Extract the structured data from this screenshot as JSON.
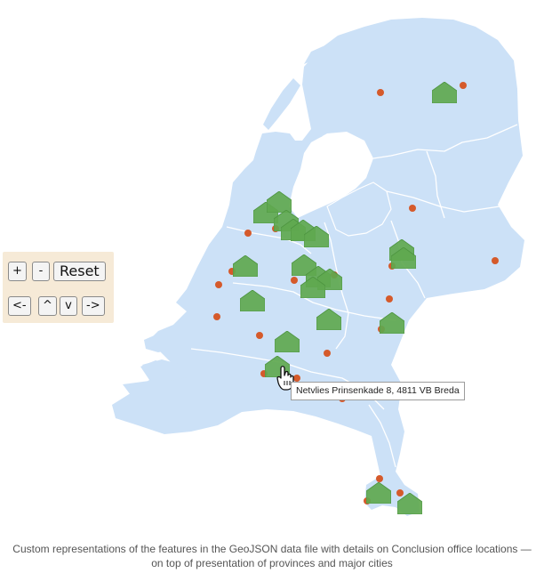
{
  "controls": {
    "zoom_in": "+",
    "zoom_out": "-",
    "reset": "Reset",
    "pan_left": "<-",
    "pan_up": "^",
    "pan_down": "v",
    "pan_right": "->"
  },
  "tooltip": {
    "text": "Netvlies Prinsenkade 8, 4811 VB Breda"
  },
  "caption": {
    "line1": "Custom representations of the features in the GeoJSON data file with details on Conclusion office locations —",
    "line2": "on top of presentation of provinces and major cities"
  },
  "colors": {
    "land": "#cce1f7",
    "province_border": "#ffffff",
    "city_marker": "#d55a2b",
    "office_marker": "#5fa84f",
    "controls_bg": "#f6ead7"
  },
  "icons": {
    "office_marker": "house-icon",
    "city_marker": "circle-dot-icon",
    "cursor": "hand-pointer-icon"
  }
}
